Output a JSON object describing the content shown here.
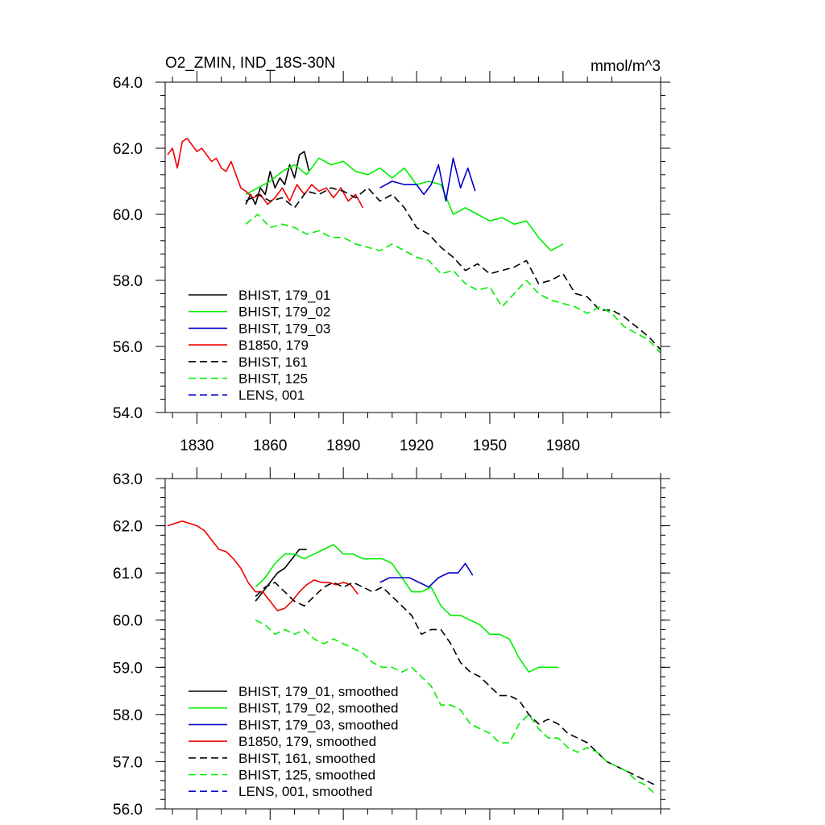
{
  "chart_data": [
    {
      "type": "line",
      "title": "O2_ZMIN, IND_18S-30N",
      "units": "mmol/m^3",
      "ylim": [
        54.0,
        64.0
      ],
      "xlim": [
        1817,
        2020
      ],
      "xticks": [
        1830,
        1860,
        1890,
        1920,
        1950,
        1980
      ],
      "xtick_labels": [
        "1830",
        "1860",
        "1890",
        "1920",
        "1950",
        "1980"
      ],
      "yticks": [
        54.0,
        56.0,
        58.0,
        60.0,
        62.0,
        64.0
      ],
      "ytick_labels": [
        "54.0",
        "56.0",
        "58.0",
        "60.0",
        "62.0",
        "64.0"
      ],
      "grid": false,
      "legend_position": "bottom-left",
      "series": [
        {
          "name": "BHIST, 179_01",
          "color": "#000000",
          "dash": "solid",
          "x": [
            1850,
            1852,
            1854,
            1856,
            1858,
            1860,
            1862,
            1864,
            1866,
            1868,
            1870,
            1872,
            1874,
            1876
          ],
          "y": [
            60.3,
            60.6,
            60.3,
            60.8,
            60.6,
            61.3,
            60.8,
            61.1,
            60.9,
            61.5,
            61.1,
            61.8,
            61.9,
            61.3
          ]
        },
        {
          "name": "BHIST, 179_02",
          "color": "#00ee00",
          "dash": "solid",
          "x": [
            1850,
            1855,
            1860,
            1865,
            1870,
            1875,
            1880,
            1885,
            1890,
            1895,
            1900,
            1905,
            1910,
            1915,
            1920,
            1925,
            1930,
            1935,
            1940,
            1945,
            1950,
            1955,
            1960,
            1965,
            1970,
            1975,
            1980
          ],
          "y": [
            60.6,
            60.8,
            61.0,
            61.3,
            61.5,
            61.2,
            61.7,
            61.5,
            61.6,
            61.3,
            61.2,
            61.4,
            61.1,
            61.4,
            60.9,
            61.0,
            60.9,
            60.0,
            60.2,
            60.0,
            59.8,
            59.9,
            59.7,
            59.8,
            59.3,
            58.9,
            59.1
          ]
        },
        {
          "name": "BHIST, 179_03",
          "color": "#0000cc",
          "dash": "solid",
          "x": [
            1905,
            1910,
            1915,
            1920,
            1923,
            1926,
            1929,
            1932,
            1935,
            1938,
            1941,
            1944
          ],
          "y": [
            60.8,
            61.0,
            60.9,
            60.9,
            60.6,
            60.9,
            61.5,
            60.4,
            61.7,
            60.8,
            61.4,
            60.7
          ]
        },
        {
          "name": "B1850, 179",
          "color": "#ee0000",
          "dash": "solid",
          "x": [
            1818,
            1820,
            1822,
            1824,
            1826,
            1828,
            1830,
            1832,
            1834,
            1836,
            1838,
            1840,
            1842,
            1844,
            1846,
            1848,
            1850,
            1853,
            1856,
            1859,
            1862,
            1865,
            1868,
            1871,
            1874,
            1877,
            1880,
            1883,
            1886,
            1889,
            1892,
            1895,
            1898
          ],
          "y": [
            61.8,
            62.0,
            61.4,
            62.2,
            62.3,
            62.1,
            61.9,
            62.0,
            61.8,
            61.6,
            61.7,
            61.4,
            61.3,
            61.6,
            61.2,
            60.8,
            60.7,
            60.5,
            60.6,
            60.3,
            60.5,
            60.8,
            60.4,
            60.9,
            60.6,
            60.9,
            60.7,
            60.8,
            60.5,
            60.8,
            60.4,
            60.6,
            60.2
          ]
        },
        {
          "name": "BHIST, 161",
          "color": "#000000",
          "dash": "dashed",
          "x": [
            1850,
            1855,
            1860,
            1865,
            1870,
            1875,
            1880,
            1885,
            1890,
            1895,
            1900,
            1905,
            1910,
            1915,
            1920,
            1925,
            1930,
            1935,
            1940,
            1945,
            1950,
            1955,
            1960,
            1965,
            1970,
            1975,
            1980,
            1985,
            1990,
            1995,
            2000,
            2005,
            2010,
            2015,
            2020
          ],
          "y": [
            60.4,
            60.6,
            60.4,
            60.5,
            60.2,
            60.7,
            60.6,
            60.8,
            60.7,
            60.5,
            60.8,
            60.4,
            60.6,
            60.2,
            59.6,
            59.4,
            59.0,
            58.7,
            58.3,
            58.5,
            58.2,
            58.3,
            58.4,
            58.6,
            57.9,
            58.0,
            58.2,
            57.6,
            57.5,
            57.1,
            57.1,
            56.9,
            56.6,
            56.3,
            55.9
          ]
        },
        {
          "name": "BHIST, 125",
          "color": "#00ee00",
          "dash": "dashed",
          "x": [
            1850,
            1855,
            1860,
            1865,
            1870,
            1875,
            1880,
            1885,
            1890,
            1895,
            1900,
            1905,
            1910,
            1915,
            1920,
            1925,
            1930,
            1935,
            1940,
            1945,
            1950,
            1955,
            1960,
            1965,
            1970,
            1975,
            1980,
            1985,
            1990,
            1995,
            2000,
            2005,
            2010,
            2015,
            2020
          ],
          "y": [
            59.7,
            60.0,
            59.6,
            59.7,
            59.6,
            59.4,
            59.5,
            59.3,
            59.3,
            59.1,
            59.0,
            58.9,
            59.1,
            58.9,
            58.7,
            58.6,
            58.2,
            58.3,
            57.9,
            57.7,
            57.8,
            57.2,
            57.6,
            58.0,
            57.6,
            57.4,
            57.3,
            57.2,
            57.0,
            57.2,
            57.0,
            56.6,
            56.4,
            56.2,
            55.8
          ]
        },
        {
          "name": "LENS, 001",
          "color": "#0000cc",
          "dash": "dashed",
          "x": [],
          "y": []
        }
      ]
    },
    {
      "type": "line",
      "ylim": [
        56.0,
        63.0
      ],
      "xlim": [
        1817,
        2020
      ],
      "xticks": [
        1830,
        1860,
        1890,
        1920,
        1950,
        1980
      ],
      "yticks": [
        56.0,
        57.0,
        58.0,
        59.0,
        60.0,
        61.0,
        62.0,
        63.0
      ],
      "ytick_labels": [
        "56.0",
        "57.0",
        "58.0",
        "59.0",
        "60.0",
        "61.0",
        "62.0",
        "63.0"
      ],
      "grid": false,
      "legend_position": "bottom-left",
      "series": [
        {
          "name": "BHIST, 179_01, smoothed",
          "color": "#000000",
          "dash": "solid",
          "x": [
            1854,
            1857,
            1860,
            1863,
            1866,
            1869,
            1872,
            1875
          ],
          "y": [
            60.4,
            60.6,
            60.8,
            61.0,
            61.1,
            61.3,
            61.5,
            61.5
          ]
        },
        {
          "name": "BHIST, 179_02, smoothed",
          "color": "#00ee00",
          "dash": "solid",
          "x": [
            1854,
            1858,
            1862,
            1866,
            1870,
            1874,
            1878,
            1882,
            1886,
            1890,
            1894,
            1898,
            1902,
            1906,
            1910,
            1914,
            1918,
            1922,
            1926,
            1930,
            1934,
            1938,
            1942,
            1946,
            1950,
            1954,
            1958,
            1962,
            1966,
            1970,
            1974,
            1978
          ],
          "y": [
            60.7,
            60.9,
            61.2,
            61.4,
            61.4,
            61.3,
            61.4,
            61.5,
            61.6,
            61.4,
            61.4,
            61.3,
            61.3,
            61.3,
            61.2,
            60.9,
            60.6,
            60.6,
            60.7,
            60.3,
            60.1,
            60.1,
            60.0,
            59.9,
            59.7,
            59.7,
            59.6,
            59.2,
            58.9,
            59.0,
            59.0,
            59.0
          ]
        },
        {
          "name": "BHIST, 179_03, smoothed",
          "color": "#0000cc",
          "dash": "solid",
          "x": [
            1905,
            1909,
            1913,
            1917,
            1921,
            1925,
            1929,
            1933,
            1937,
            1940,
            1943
          ],
          "y": [
            60.8,
            60.9,
            60.9,
            60.9,
            60.8,
            60.7,
            60.9,
            61.0,
            61.0,
            61.2,
            60.95
          ]
        },
        {
          "name": "B1850, 179, smoothed",
          "color": "#ee0000",
          "dash": "solid",
          "x": [
            1818,
            1821,
            1824,
            1827,
            1830,
            1833,
            1836,
            1839,
            1842,
            1845,
            1848,
            1851,
            1854,
            1857,
            1860,
            1863,
            1866,
            1869,
            1872,
            1875,
            1878,
            1881,
            1884,
            1887,
            1890,
            1893,
            1896
          ],
          "y": [
            62.0,
            62.05,
            62.1,
            62.05,
            62.0,
            61.9,
            61.7,
            61.5,
            61.45,
            61.3,
            61.1,
            60.8,
            60.6,
            60.6,
            60.4,
            60.2,
            60.25,
            60.4,
            60.6,
            60.75,
            60.85,
            60.8,
            60.8,
            60.75,
            60.8,
            60.75,
            60.55
          ]
        },
        {
          "name": "BHIST, 161, smoothed",
          "color": "#000000",
          "dash": "dashed",
          "x": [
            1854,
            1858,
            1862,
            1866,
            1870,
            1874,
            1878,
            1882,
            1886,
            1890,
            1894,
            1898,
            1902,
            1906,
            1910,
            1914,
            1918,
            1922,
            1926,
            1930,
            1934,
            1938,
            1942,
            1946,
            1950,
            1954,
            1958,
            1962,
            1966,
            1970,
            1974,
            1978,
            1982,
            1986,
            1990,
            1994,
            1998,
            2002,
            2006,
            2010,
            2014,
            2018
          ],
          "y": [
            60.5,
            60.7,
            60.8,
            60.6,
            60.4,
            60.3,
            60.5,
            60.7,
            60.8,
            60.7,
            60.8,
            60.7,
            60.6,
            60.7,
            60.5,
            60.3,
            60.1,
            59.7,
            59.8,
            59.8,
            59.5,
            59.1,
            58.9,
            58.8,
            58.6,
            58.4,
            58.4,
            58.3,
            58.0,
            57.8,
            57.9,
            57.8,
            57.6,
            57.5,
            57.4,
            57.2,
            57.0,
            56.9,
            56.8,
            56.7,
            56.6,
            56.5
          ]
        },
        {
          "name": "BHIST, 125, smoothed",
          "color": "#00ee00",
          "dash": "dashed",
          "x": [
            1854,
            1858,
            1862,
            1866,
            1870,
            1874,
            1878,
            1882,
            1886,
            1890,
            1894,
            1898,
            1902,
            1906,
            1910,
            1914,
            1918,
            1922,
            1926,
            1930,
            1934,
            1938,
            1942,
            1946,
            1950,
            1954,
            1958,
            1962,
            1966,
            1970,
            1974,
            1978,
            1982,
            1986,
            1990,
            1994,
            1998,
            2002,
            2006,
            2010,
            2014,
            2018
          ],
          "y": [
            60.0,
            59.9,
            59.7,
            59.8,
            59.7,
            59.8,
            59.6,
            59.5,
            59.6,
            59.5,
            59.4,
            59.3,
            59.1,
            59.0,
            59.0,
            58.9,
            59.0,
            58.8,
            58.6,
            58.2,
            58.2,
            58.1,
            57.8,
            57.7,
            57.6,
            57.4,
            57.4,
            57.8,
            58.0,
            57.7,
            57.5,
            57.5,
            57.3,
            57.2,
            57.3,
            57.2,
            57.0,
            56.9,
            56.8,
            56.6,
            56.5,
            56.3
          ]
        },
        {
          "name": "LENS, 001, smoothed",
          "color": "#0000cc",
          "dash": "dashed",
          "x": [],
          "y": []
        }
      ]
    }
  ]
}
